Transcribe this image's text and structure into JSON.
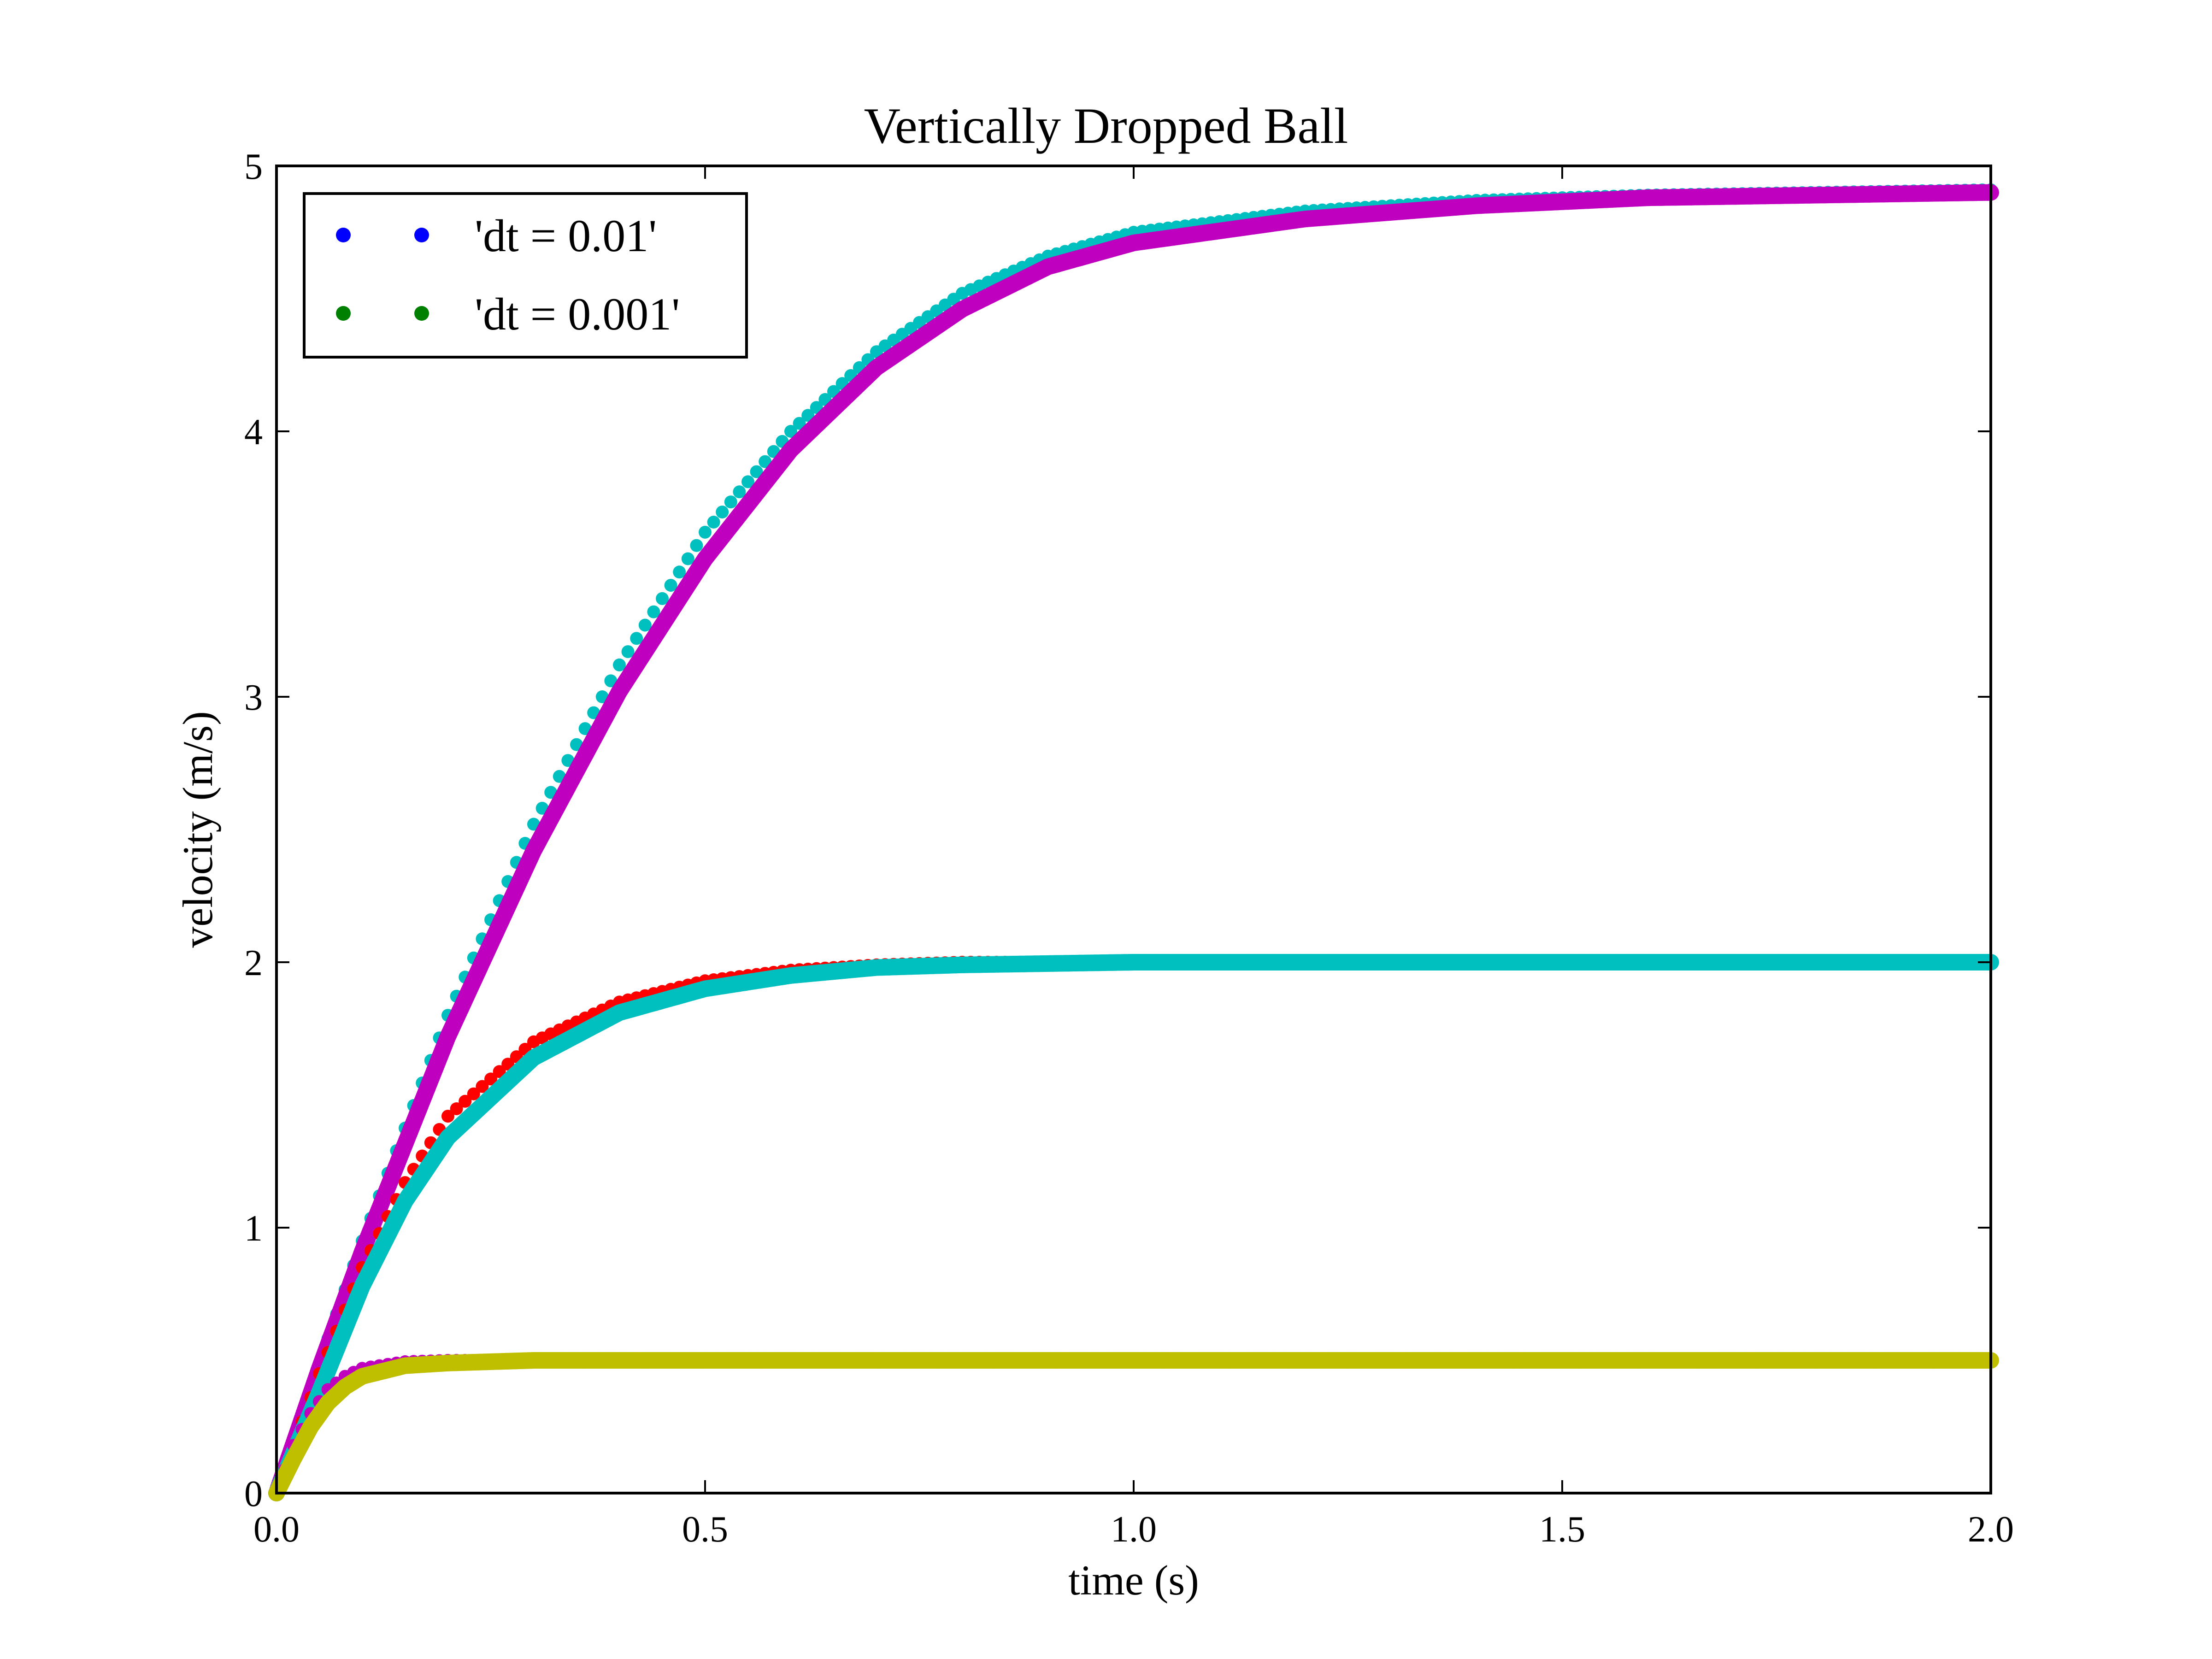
{
  "chart_data": {
    "type": "scatter",
    "title": "Vertically Dropped Ball",
    "xlabel": "time (s)",
    "ylabel": "velocity (m/s)",
    "xlim": [
      0.0,
      2.0
    ],
    "ylim": [
      0,
      5
    ],
    "grid": false,
    "legend_position": "top-left",
    "x_ticks": [
      "0.0",
      "0.5",
      "1.0",
      "1.5",
      "2.0"
    ],
    "y_ticks": [
      "0",
      "1",
      "2",
      "3",
      "4",
      "5"
    ],
    "legend": [
      {
        "label": "'dt = 0.01'",
        "color": "#0000ff"
      },
      {
        "label": "'dt = 0.001'",
        "color": "#008000"
      }
    ],
    "series": [
      {
        "color": "#00bfbf",
        "dt": 0.01,
        "marker": "dot",
        "x": [
          0.0,
          0.05,
          0.1,
          0.2,
          0.3,
          0.4,
          0.5,
          0.6,
          0.7,
          0.8,
          0.9,
          1.0,
          1.2,
          1.4,
          1.6,
          1.8,
          2.0
        ],
        "y": [
          0.0,
          0.49,
          0.95,
          1.8,
          2.52,
          3.12,
          3.62,
          4.0,
          4.3,
          4.52,
          4.66,
          4.75,
          4.83,
          4.87,
          4.89,
          4.9,
          4.91
        ]
      },
      {
        "color": "#bf00bf",
        "dt": 0.001,
        "marker": "dot",
        "x": [
          0.0,
          0.05,
          0.1,
          0.2,
          0.3,
          0.4,
          0.5,
          0.6,
          0.7,
          0.8,
          0.9,
          1.0,
          1.2,
          1.4,
          1.6,
          1.8,
          2.0
        ],
        "y": [
          0.0,
          0.47,
          0.91,
          1.72,
          2.42,
          3.02,
          3.52,
          3.93,
          4.24,
          4.46,
          4.62,
          4.71,
          4.8,
          4.85,
          4.88,
          4.89,
          4.9
        ]
      },
      {
        "color": "#ff0000",
        "dt": 0.01,
        "marker": "dot",
        "x": [
          0.0,
          0.05,
          0.1,
          0.15,
          0.2,
          0.3,
          0.4,
          0.5,
          0.6,
          0.7,
          0.8,
          1.0,
          1.2,
          1.5,
          2.0
        ],
        "y": [
          0.0,
          0.45,
          0.85,
          1.17,
          1.42,
          1.7,
          1.85,
          1.93,
          1.97,
          1.99,
          2.0,
          2.0,
          2.0,
          2.0,
          2.0
        ]
      },
      {
        "color": "#00bfbf",
        "dt": 0.001,
        "marker": "dot",
        "x": [
          0.0,
          0.05,
          0.1,
          0.15,
          0.2,
          0.3,
          0.4,
          0.5,
          0.6,
          0.7,
          0.8,
          1.0,
          1.2,
          1.5,
          2.0
        ],
        "y": [
          0.0,
          0.38,
          0.78,
          1.1,
          1.34,
          1.64,
          1.81,
          1.9,
          1.95,
          1.98,
          1.99,
          2.0,
          2.0,
          2.0,
          2.0
        ]
      },
      {
        "color": "#bf00bf",
        "dt": 0.01,
        "marker": "dot",
        "x": [
          0.0,
          0.02,
          0.04,
          0.06,
          0.08,
          0.1,
          0.15,
          0.2,
          0.3,
          0.5,
          1.0,
          1.5,
          2.0
        ],
        "y": [
          0.0,
          0.18,
          0.3,
          0.39,
          0.44,
          0.47,
          0.495,
          0.5,
          0.5,
          0.5,
          0.5,
          0.5,
          0.5
        ]
      },
      {
        "color": "#bfbf00",
        "dt": 0.001,
        "marker": "dot",
        "x": [
          0.0,
          0.02,
          0.04,
          0.06,
          0.08,
          0.1,
          0.15,
          0.2,
          0.3,
          0.5,
          1.0,
          1.5,
          2.0
        ],
        "y": [
          0.0,
          0.13,
          0.25,
          0.34,
          0.4,
          0.44,
          0.48,
          0.49,
          0.5,
          0.5,
          0.5,
          0.5,
          0.5
        ]
      }
    ]
  }
}
